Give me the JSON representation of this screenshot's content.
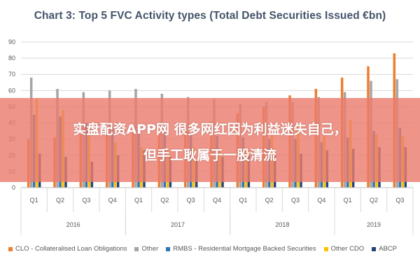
{
  "chart_data": {
    "type": "bar",
    "title": "Chart 3: Top 5 FVC Activity types (Total Debt Securities Issued €bn)",
    "categories": [
      "Q1",
      "Q2",
      "Q3",
      "Q4",
      "Q1",
      "Q2",
      "Q3",
      "Q4",
      "Q1",
      "Q2",
      "Q3",
      "Q4",
      "Q1",
      "Q2",
      "Q3"
    ],
    "years": [
      {
        "label": "2016",
        "span": 4
      },
      {
        "label": "2017",
        "span": 4
      },
      {
        "label": "2018",
        "span": 4
      },
      {
        "label": "2019",
        "span": 3
      }
    ],
    "ylim": [
      0,
      90
    ],
    "yticks": [
      0,
      10,
      20,
      30,
      40,
      50,
      60,
      70,
      80,
      90
    ],
    "grid": true,
    "legend_position": "bottom",
    "series": [
      {
        "name": "CLO - Collateralised Loan Obligations",
        "color": "#ed7d31",
        "values": [
          30,
          31,
          33,
          34,
          36,
          37,
          39,
          41,
          46,
          50,
          57,
          61,
          68,
          75,
          83
        ]
      },
      {
        "name": "Other",
        "color": "#a5a5a5",
        "values": [
          68,
          61,
          59,
          60,
          61,
          58,
          56,
          55,
          52,
          53,
          53,
          56,
          59,
          66,
          67
        ]
      },
      {
        "name": "RMBS - Residential Mortgage Backed Securities",
        "color": "#2e75b6",
        "values": [
          45,
          44,
          40,
          38,
          36,
          34,
          33,
          32,
          31,
          30,
          30,
          28,
          31,
          35,
          37
        ]
      },
      {
        "name": "Other CDO",
        "color": "#ffc000",
        "values": [
          55,
          48,
          36,
          28,
          25,
          23,
          25,
          23,
          24,
          35,
          38,
          32,
          42,
          33,
          32
        ]
      },
      {
        "name": "ABCP",
        "color": "#264478",
        "values": [
          21,
          19,
          16,
          20,
          23,
          19,
          17,
          19,
          20,
          20,
          21,
          23,
          24,
          25,
          25
        ]
      }
    ]
  },
  "overlay": {
    "line1": "实盘配资APP网   很多网红因为利益迷失自己，",
    "line2": "但手工耿属于一股清流"
  }
}
